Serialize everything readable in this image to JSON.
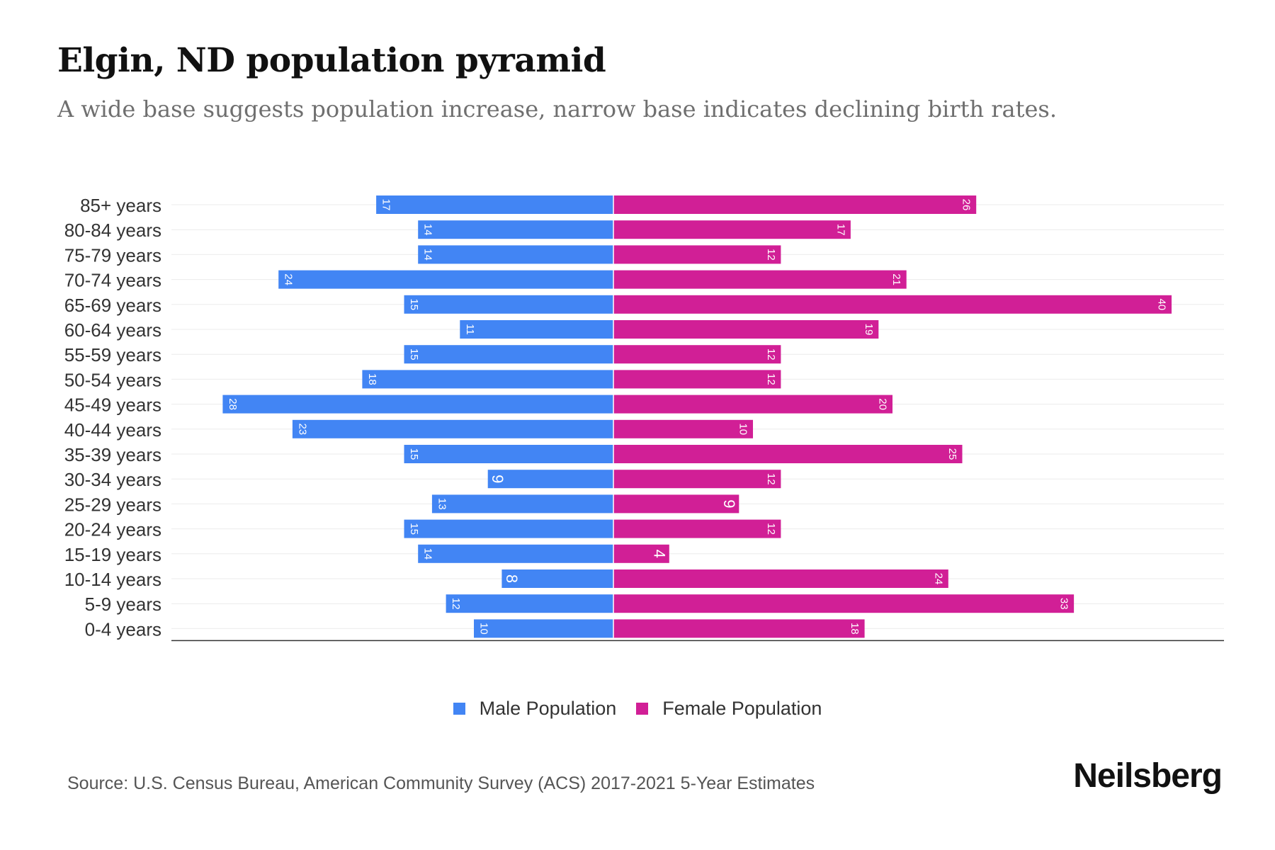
{
  "header": {
    "title": "Elgin, ND population pyramid",
    "subtitle": "A wide base suggests population increase, narrow base indicates declining birth rates."
  },
  "chart_data": {
    "type": "bar",
    "orientation": "horizontal-pyramid",
    "categories": [
      "85+ years",
      "80-84 years",
      "75-79 years",
      "70-74 years",
      "65-69 years",
      "60-64 years",
      "55-59 years",
      "50-54 years",
      "45-49 years",
      "40-44 years",
      "35-39 years",
      "30-34 years",
      "25-29 years",
      "20-24 years",
      "15-19 years",
      "10-14 years",
      "5-9 years",
      "0-4 years"
    ],
    "series": [
      {
        "name": "Male Population",
        "color": "#4285f4",
        "side": "left",
        "values": [
          17,
          14,
          14,
          24,
          15,
          11,
          15,
          18,
          28,
          23,
          15,
          9,
          13,
          15,
          14,
          8,
          12,
          10
        ]
      },
      {
        "name": "Female Population",
        "color": "#d11f96",
        "side": "right",
        "values": [
          26,
          17,
          12,
          21,
          40,
          19,
          12,
          12,
          20,
          10,
          25,
          12,
          9,
          12,
          4,
          24,
          33,
          18
        ]
      }
    ],
    "xlim": [
      -32,
      44
    ],
    "grid": true,
    "legend": "bottom-center",
    "data_labels": "rotated-inside-bar-ends"
  },
  "footer": {
    "source": "Source: U.S. Census Bureau, American Community Survey (ACS) 2017-2021 5-Year Estimates",
    "brand": "Neilsberg"
  }
}
